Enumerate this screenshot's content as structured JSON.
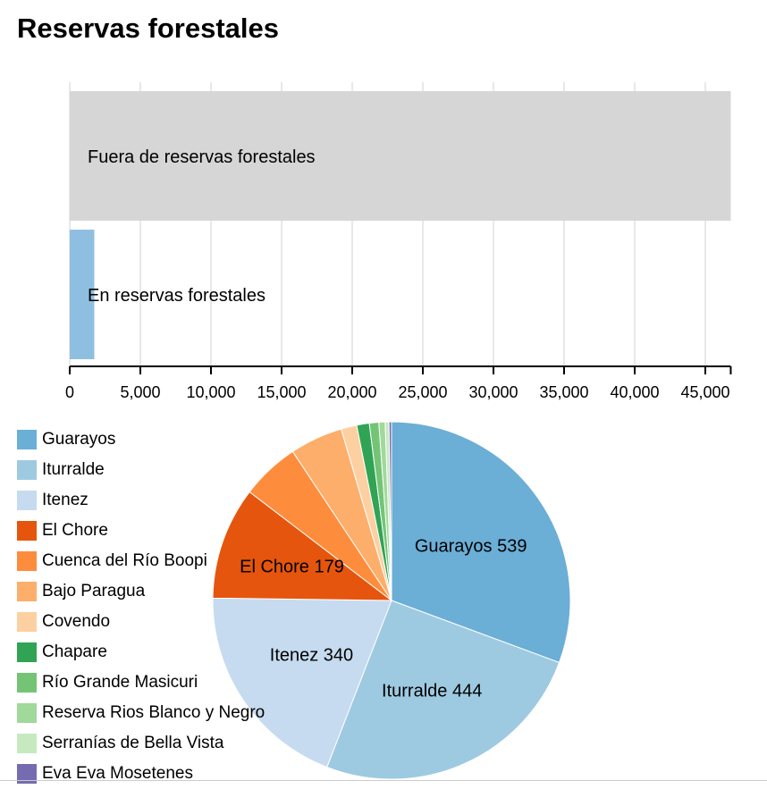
{
  "title": "Reservas forestales",
  "chart_data": [
    {
      "type": "bar",
      "orientation": "horizontal",
      "categories": [
        "Fuera de reservas forestales",
        "En reservas forestales"
      ],
      "values": [
        46800,
        1740
      ],
      "colors": [
        "#d6d6d6",
        "#8fbfe0"
      ],
      "xlim": [
        0,
        46800
      ],
      "xticks": [
        0,
        5000,
        10000,
        15000,
        20000,
        25000,
        30000,
        35000,
        40000,
        45000
      ],
      "xtick_labels": [
        "0",
        "5,000",
        "10,000",
        "15,000",
        "20,000",
        "25,000",
        "30,000",
        "35,000",
        "40,000",
        "45,000"
      ],
      "grid": true
    },
    {
      "type": "pie",
      "legend_position": "left",
      "slices": [
        {
          "label": "Guarayos",
          "value": 539,
          "color": "#6baed6"
        },
        {
          "label": "Iturralde",
          "value": 444,
          "color": "#9ecae1"
        },
        {
          "label": "Itenez",
          "value": 340,
          "color": "#c6dbef"
        },
        {
          "label": "El Chore",
          "value": 179,
          "color": "#e6550d"
        },
        {
          "label": "Cuenca del Río Boopi",
          "value": 93,
          "color": "#fd8d3c"
        },
        {
          "label": "Bajo Paragua",
          "value": 84,
          "color": "#fdae6b"
        },
        {
          "label": "Covendo",
          "value": 25,
          "color": "#fdd0a2"
        },
        {
          "label": "Chapare",
          "value": 20,
          "color": "#31a354"
        },
        {
          "label": "Río Grande Masicuri",
          "value": 15,
          "color": "#74c476"
        },
        {
          "label": "Reserva Rios Blanco y Negro",
          "value": 10,
          "color": "#a1d99b"
        },
        {
          "label": "Serranías de Bella Vista",
          "value": 6,
          "color": "#c7e9c0"
        },
        {
          "label": "Eva Eva Mosetenes",
          "value": 4,
          "color": "#756bb1"
        }
      ],
      "data_labels": [
        "Guarayos 539",
        "Iturralde 444",
        "Itenez 340",
        "El Chore 179"
      ]
    }
  ]
}
